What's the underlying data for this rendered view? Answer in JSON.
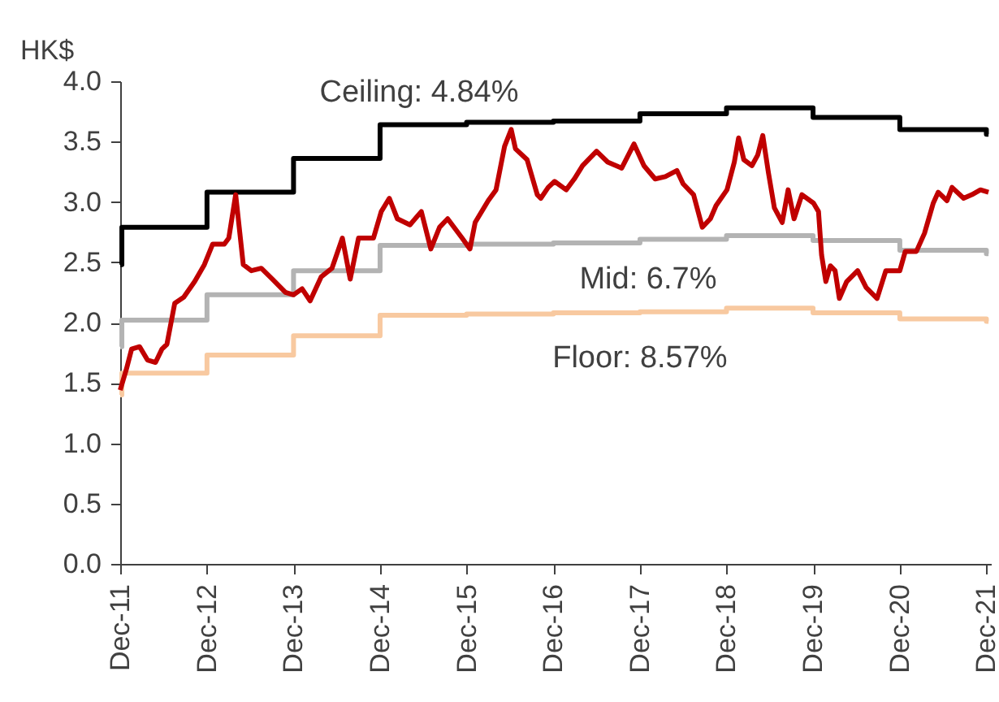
{
  "chart_data": {
    "type": "line",
    "ylabel": "HK$",
    "ylim": [
      0,
      4
    ],
    "yticks": [
      {
        "value": 0,
        "label": "0.0"
      },
      {
        "value": 0.5,
        "label": "0.5"
      },
      {
        "value": 1,
        "label": "1.0"
      },
      {
        "value": 1.5,
        "label": "1.5"
      },
      {
        "value": 2,
        "label": "2.0"
      },
      {
        "value": 2.5,
        "label": "2.5"
      },
      {
        "value": 3,
        "label": "3.0"
      },
      {
        "value": 3.5,
        "label": "3.5"
      },
      {
        "value": 4,
        "label": "4.0"
      }
    ],
    "xlim": [
      "2011-12-01",
      "2021-12-20"
    ],
    "xticks": [
      {
        "value": "2011-12-01",
        "label": "Dec-11"
      },
      {
        "value": "2012-12-01",
        "label": "Dec-12"
      },
      {
        "value": "2013-12-01",
        "label": "Dec-13"
      },
      {
        "value": "2014-12-01",
        "label": "Dec-14"
      },
      {
        "value": "2015-12-01",
        "label": "Dec-15"
      },
      {
        "value": "2016-12-01",
        "label": "Dec-16"
      },
      {
        "value": "2017-12-01",
        "label": "Dec-17"
      },
      {
        "value": "2018-12-01",
        "label": "Dec-18"
      },
      {
        "value": "2019-12-01",
        "label": "Dec-19"
      },
      {
        "value": "2020-12-01",
        "label": "Dec-20"
      },
      {
        "value": "2021-12-01",
        "label": "Dec-21"
      }
    ],
    "grid": false,
    "series": [
      {
        "type": "step",
        "name": "Ceiling: 4.84%",
        "color": "#000000",
        "x": [
          "2011-12-01",
          "2011-12-08",
          "2012-12-01",
          "2013-12-01",
          "2014-12-01",
          "2015-12-01",
          "2016-12-01",
          "2017-12-01",
          "2018-12-01",
          "2019-12-01",
          "2020-12-01",
          "2021-12-01",
          "2021-12-10"
        ],
        "values": [
          2.48,
          2.79,
          3.08,
          3.36,
          3.64,
          3.66,
          3.67,
          3.73,
          3.78,
          3.7,
          3.6,
          3.56,
          3.56
        ]
      },
      {
        "type": "step",
        "name": "Mid: 6.7%",
        "color": "#b3b3b3",
        "x": [
          "2011-12-01",
          "2011-12-08",
          "2012-12-01",
          "2013-12-01",
          "2014-12-01",
          "2015-12-01",
          "2016-12-01",
          "2017-12-01",
          "2018-12-01",
          "2019-12-01",
          "2020-12-01",
          "2021-12-01",
          "2021-12-10"
        ],
        "values": [
          1.8,
          2.02,
          2.23,
          2.43,
          2.64,
          2.65,
          2.66,
          2.69,
          2.72,
          2.68,
          2.6,
          2.57,
          2.57
        ]
      },
      {
        "type": "step",
        "name": "Floor: 8.57%",
        "color": "#f8c9a0",
        "x": [
          "2011-12-01",
          "2011-12-08",
          "2012-12-01",
          "2013-12-01",
          "2014-12-01",
          "2015-12-01",
          "2016-12-01",
          "2017-12-01",
          "2018-12-01",
          "2019-12-01",
          "2020-12-01",
          "2021-12-01",
          "2021-12-10"
        ],
        "values": [
          1.4,
          1.58,
          1.73,
          1.89,
          2.06,
          2.07,
          2.08,
          2.09,
          2.12,
          2.08,
          2.03,
          2.01,
          2.01
        ]
      },
      {
        "type": "line",
        "color": "#c00000",
        "x": [
          "2011-12-01",
          "2011-12-28",
          "2012-01-18",
          "2012-02-21",
          "2012-03-25",
          "2012-04-28",
          "2012-05-25",
          "2012-06-15",
          "2012-07-18",
          "2012-08-25",
          "2012-10-10",
          "2012-11-20",
          "2012-12-25",
          "2013-02-12",
          "2013-03-03",
          "2013-04-01",
          "2013-05-03",
          "2013-06-06",
          "2013-07-18",
          "2013-09-03",
          "2013-10-28",
          "2013-12-01",
          "2014-01-06",
          "2014-02-09",
          "2014-03-28",
          "2014-05-12",
          "2014-06-25",
          "2014-07-28",
          "2014-09-01",
          "2014-11-03",
          "2014-12-06",
          "2015-01-09",
          "2015-02-12",
          "2015-04-06",
          "2015-05-24",
          "2015-07-03",
          "2015-08-09",
          "2015-09-12",
          "2015-11-12",
          "2015-12-15",
          "2016-01-06",
          "2016-03-01",
          "2016-04-03",
          "2016-05-09",
          "2016-06-06",
          "2016-06-24",
          "2016-08-12",
          "2016-09-24",
          "2016-10-09",
          "2016-11-09",
          "2016-12-06",
          "2017-01-24",
          "2017-02-27",
          "2017-04-03",
          "2017-06-01",
          "2017-07-18",
          "2017-09-15",
          "2017-11-06",
          "2017-12-18",
          "2018-02-03",
          "2018-03-18",
          "2018-05-06",
          "2018-06-01",
          "2018-07-15",
          "2018-08-21",
          "2018-09-24",
          "2018-10-18",
          "2018-12-03",
          "2019-01-03",
          "2019-01-21",
          "2019-02-12",
          "2019-03-18",
          "2019-04-12",
          "2019-05-03",
          "2019-05-27",
          "2019-06-21",
          "2019-07-24",
          "2019-08-18",
          "2019-09-12",
          "2019-10-15",
          "2019-12-03",
          "2019-12-24",
          "2020-01-06",
          "2020-01-24",
          "2020-02-12",
          "2020-03-03",
          "2020-03-21",
          "2020-04-21",
          "2020-06-06",
          "2020-07-12",
          "2020-08-27",
          "2020-10-03",
          "2020-12-01",
          "2020-12-24",
          "2021-02-09",
          "2021-03-15",
          "2021-04-21",
          "2021-05-12",
          "2021-06-18",
          "2021-07-09",
          "2021-08-27",
          "2021-10-01",
          "2021-11-06",
          "2021-12-10"
        ],
        "values": [
          1.44,
          1.62,
          1.78,
          1.8,
          1.69,
          1.67,
          1.78,
          1.82,
          2.16,
          2.21,
          2.34,
          2.48,
          2.65,
          2.65,
          2.7,
          3.06,
          2.48,
          2.43,
          2.45,
          2.36,
          2.25,
          2.23,
          2.28,
          2.18,
          2.38,
          2.45,
          2.7,
          2.36,
          2.7,
          2.7,
          2.92,
          3.03,
          2.86,
          2.81,
          2.92,
          2.61,
          2.79,
          2.86,
          2.7,
          2.61,
          2.83,
          3.01,
          3.1,
          3.46,
          3.6,
          3.44,
          3.35,
          3.06,
          3.03,
          3.12,
          3.17,
          3.1,
          3.19,
          3.3,
          3.42,
          3.33,
          3.28,
          3.48,
          3.3,
          3.19,
          3.21,
          3.26,
          3.15,
          3.06,
          2.79,
          2.86,
          2.97,
          3.1,
          3.33,
          3.53,
          3.35,
          3.3,
          3.39,
          3.55,
          3.24,
          2.95,
          2.83,
          3.1,
          2.86,
          3.06,
          2.99,
          2.92,
          2.56,
          2.34,
          2.47,
          2.43,
          2.2,
          2.34,
          2.43,
          2.29,
          2.2,
          2.43,
          2.43,
          2.59,
          2.59,
          2.74,
          2.99,
          3.08,
          3.01,
          3.12,
          3.03,
          3.06,
          3.1,
          3.08
        ]
      }
    ]
  }
}
